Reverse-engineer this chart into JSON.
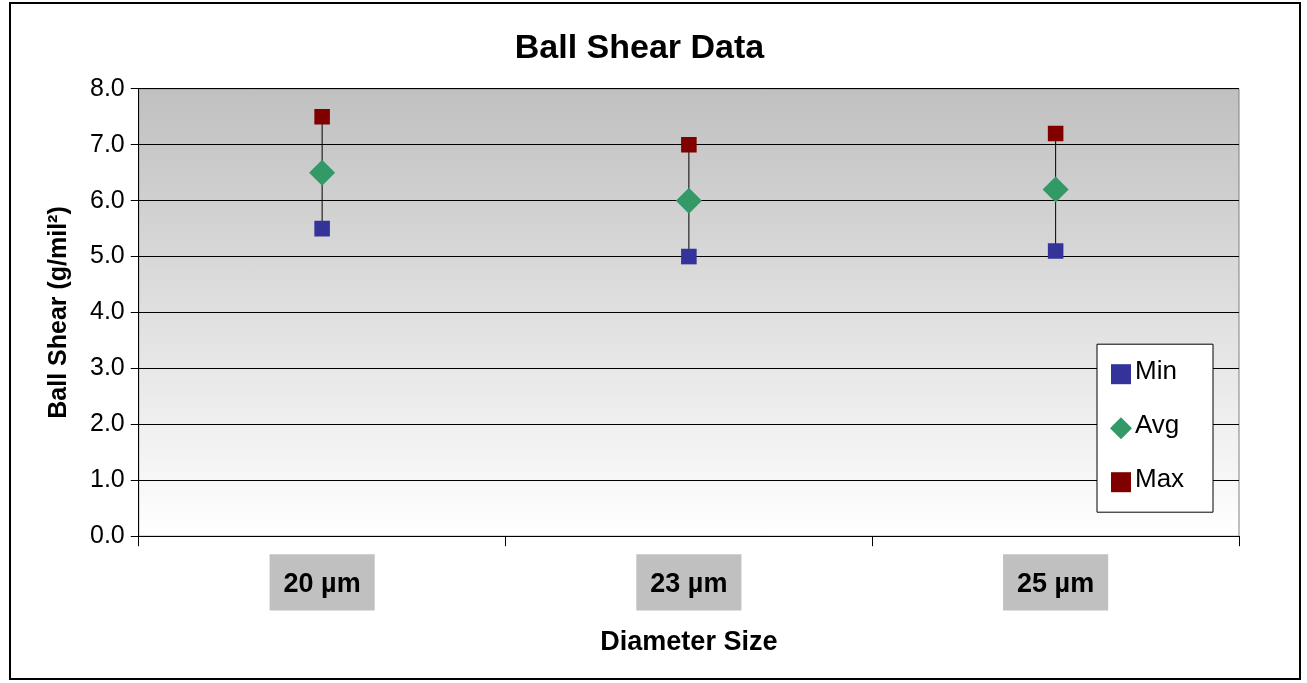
{
  "chart_data": {
    "type": "scatter",
    "title": "Ball Shear Data",
    "xlabel": "Diameter Size",
    "ylabel": "Ball Shear (g/mil²)",
    "categories": [
      "20 µm",
      "23 µm",
      "25 µm"
    ],
    "series": [
      {
        "name": "Min",
        "color": "#333399",
        "marker": "square",
        "values": [
          5.5,
          5.0,
          5.1
        ]
      },
      {
        "name": "Avg",
        "color": "#339966",
        "marker": "diamond",
        "values": [
          6.5,
          6.0,
          6.2
        ]
      },
      {
        "name": "Max",
        "color": "#800000",
        "marker": "square",
        "values": [
          7.5,
          7.0,
          7.2
        ]
      }
    ],
    "ylim": [
      0,
      8
    ],
    "yticks": [
      {
        "value": 0,
        "label": "0.0"
      },
      {
        "value": 1,
        "label": "1.0"
      },
      {
        "value": 2,
        "label": "2.0"
      },
      {
        "value": 3,
        "label": "3.0"
      },
      {
        "value": 4,
        "label": "4.0"
      },
      {
        "value": 5,
        "label": "5.0"
      },
      {
        "value": 6,
        "label": "6.0"
      },
      {
        "value": 7,
        "label": "7.0"
      },
      {
        "value": 8,
        "label": "8.0"
      }
    ],
    "grid": "y",
    "legend": "bottom right"
  }
}
